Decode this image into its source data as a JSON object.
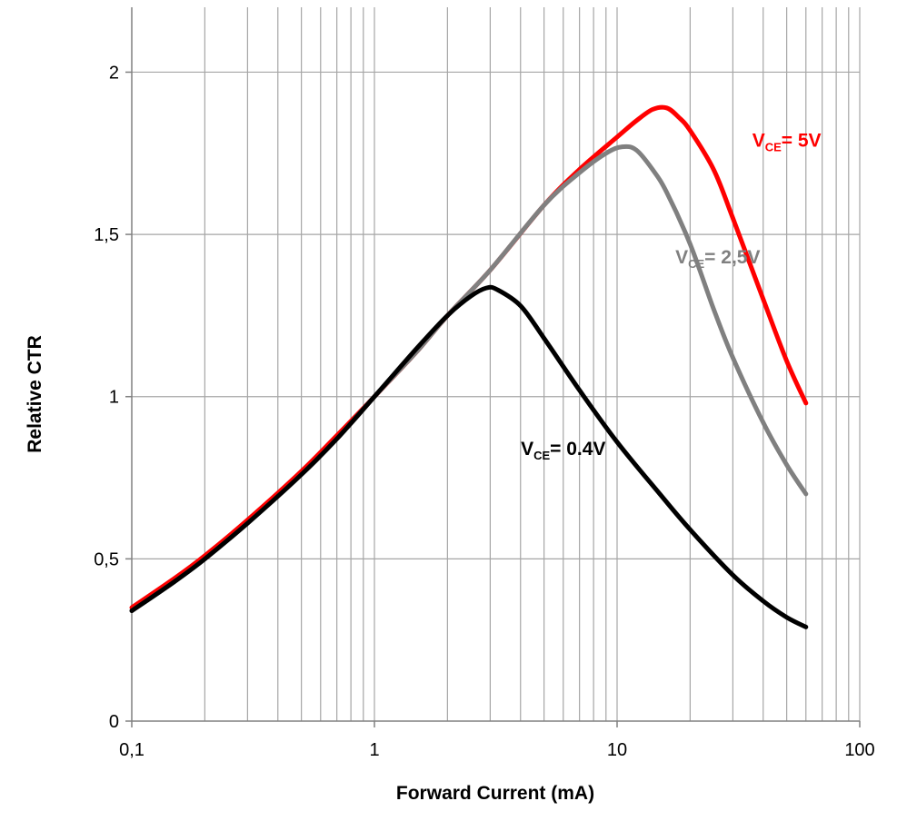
{
  "chart_data": {
    "type": "line",
    "title": "",
    "xlabel": "Forward Current (mA)",
    "ylabel": "Relative CTR",
    "xscale": "log",
    "xlim": [
      0.1,
      100
    ],
    "ylim": [
      0,
      2.2
    ],
    "grid": true,
    "legend": "none",
    "x_ticks": [
      {
        "value": 0.1,
        "label": "0,1"
      },
      {
        "value": 1,
        "label": "1"
      },
      {
        "value": 10,
        "label": "10"
      },
      {
        "value": 100,
        "label": "100"
      }
    ],
    "y_ticks": [
      {
        "value": 0,
        "label": "0"
      },
      {
        "value": 0.5,
        "label": "0,5"
      },
      {
        "value": 1,
        "label": "1"
      },
      {
        "value": 1.5,
        "label": "1,5"
      },
      {
        "value": 2,
        "label": "2"
      }
    ],
    "series": [
      {
        "color": "#ff0000",
        "x": [
          0.1,
          0.15,
          0.2,
          0.3,
          0.5,
          0.7,
          1,
          1.5,
          2,
          3,
          5,
          7,
          10,
          12,
          14,
          16,
          18,
          20,
          25,
          30,
          40,
          50,
          60
        ],
        "y": [
          0.35,
          0.44,
          0.51,
          0.62,
          0.77,
          0.88,
          1.0,
          1.14,
          1.25,
          1.39,
          1.59,
          1.7,
          1.8,
          1.85,
          1.885,
          1.89,
          1.86,
          1.82,
          1.7,
          1.55,
          1.3,
          1.11,
          0.98
        ]
      },
      {
        "color": "#808080",
        "x": [
          0.1,
          0.15,
          0.2,
          0.3,
          0.5,
          0.7,
          1,
          1.5,
          2,
          3,
          5,
          7,
          9,
          10.5,
          12,
          14,
          16,
          20,
          25,
          30,
          40,
          50,
          60
        ],
        "y": [
          0.34,
          0.43,
          0.5,
          0.61,
          0.76,
          0.87,
          1.0,
          1.14,
          1.25,
          1.39,
          1.59,
          1.69,
          1.75,
          1.77,
          1.76,
          1.7,
          1.63,
          1.47,
          1.27,
          1.12,
          0.92,
          0.79,
          0.7
        ]
      },
      {
        "color": "#000000",
        "x": [
          0.1,
          0.15,
          0.2,
          0.3,
          0.5,
          0.7,
          1,
          1.5,
          2,
          2.5,
          2.9,
          3.2,
          4,
          5,
          7,
          10,
          15,
          20,
          30,
          40,
          50,
          60
        ],
        "y": [
          0.34,
          0.43,
          0.5,
          0.61,
          0.76,
          0.87,
          1.0,
          1.15,
          1.25,
          1.31,
          1.335,
          1.33,
          1.28,
          1.18,
          1.02,
          0.86,
          0.7,
          0.59,
          0.45,
          0.37,
          0.32,
          0.29
        ]
      }
    ],
    "annotations": [
      {
        "main": "V",
        "sub": "CE",
        "rest": "= 5V",
        "color": "#ff0000",
        "x": 50,
        "y": 1.77
      },
      {
        "main": "V",
        "sub": "CE",
        "rest": "= 2,5V",
        "color": "#808080",
        "x": 26,
        "y": 1.41
      },
      {
        "main": "V",
        "sub": "CE",
        "rest": "= 0.4V",
        "color": "#000000",
        "x": 6,
        "y": 0.82
      }
    ]
  }
}
